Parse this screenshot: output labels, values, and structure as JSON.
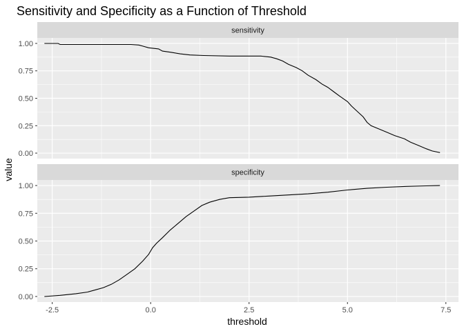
{
  "chart_data": {
    "type": "line",
    "title": "Sensitivity and Specificity as a Function of Threshold",
    "xlabel": "threshold",
    "ylabel": "value",
    "xlim": [
      -2.88,
      7.82
    ],
    "ylim": [
      -0.05,
      1.05
    ],
    "x_ticks": [
      -2.5,
      0,
      2.5,
      5,
      7.5
    ],
    "x_tick_labels": [
      "-2.5",
      "0.0",
      "2.5",
      "5.0",
      "7.5"
    ],
    "y_ticks": [
      0,
      0.25,
      0.5,
      0.75,
      1
    ],
    "y_tick_labels": [
      "0.00",
      "0.25",
      "0.50",
      "0.75",
      "1.00"
    ],
    "grid": true,
    "panel_background": "#ebebeb",
    "strip_background": "#d9d9d9",
    "line_color": "#000000",
    "facets": [
      {
        "label": "sensitivity",
        "points": [
          [
            -2.7,
            1.0
          ],
          [
            -2.35,
            1.0
          ],
          [
            -2.3,
            0.99
          ],
          [
            -1.5,
            0.99
          ],
          [
            -0.5,
            0.99
          ],
          [
            -0.3,
            0.985
          ],
          [
            -0.2,
            0.975
          ],
          [
            -0.05,
            0.96
          ],
          [
            0.2,
            0.95
          ],
          [
            0.3,
            0.93
          ],
          [
            0.5,
            0.92
          ],
          [
            0.75,
            0.905
          ],
          [
            1.0,
            0.895
          ],
          [
            1.35,
            0.89
          ],
          [
            2.0,
            0.885
          ],
          [
            2.8,
            0.885
          ],
          [
            3.05,
            0.875
          ],
          [
            3.2,
            0.86
          ],
          [
            3.35,
            0.84
          ],
          [
            3.5,
            0.81
          ],
          [
            3.7,
            0.78
          ],
          [
            3.85,
            0.75
          ],
          [
            4.0,
            0.71
          ],
          [
            4.2,
            0.67
          ],
          [
            4.35,
            0.63
          ],
          [
            4.5,
            0.6
          ],
          [
            4.65,
            0.56
          ],
          [
            4.8,
            0.52
          ],
          [
            5.0,
            0.47
          ],
          [
            5.1,
            0.43
          ],
          [
            5.25,
            0.38
          ],
          [
            5.4,
            0.33
          ],
          [
            5.5,
            0.28
          ],
          [
            5.6,
            0.25
          ],
          [
            5.8,
            0.22
          ],
          [
            6.0,
            0.19
          ],
          [
            6.2,
            0.16
          ],
          [
            6.45,
            0.13
          ],
          [
            6.6,
            0.1
          ],
          [
            6.8,
            0.07
          ],
          [
            7.0,
            0.04
          ],
          [
            7.15,
            0.02
          ],
          [
            7.35,
            0.005
          ]
        ]
      },
      {
        "label": "specificity",
        "points": [
          [
            -2.7,
            0.0
          ],
          [
            -2.3,
            0.01
          ],
          [
            -1.9,
            0.025
          ],
          [
            -1.6,
            0.04
          ],
          [
            -1.4,
            0.06
          ],
          [
            -1.2,
            0.08
          ],
          [
            -1.0,
            0.11
          ],
          [
            -0.8,
            0.15
          ],
          [
            -0.6,
            0.2
          ],
          [
            -0.4,
            0.25
          ],
          [
            -0.2,
            0.32
          ],
          [
            -0.05,
            0.38
          ],
          [
            0.05,
            0.44
          ],
          [
            0.15,
            0.48
          ],
          [
            0.3,
            0.53
          ],
          [
            0.5,
            0.6
          ],
          [
            0.7,
            0.66
          ],
          [
            0.9,
            0.72
          ],
          [
            1.1,
            0.77
          ],
          [
            1.3,
            0.82
          ],
          [
            1.5,
            0.85
          ],
          [
            1.75,
            0.875
          ],
          [
            2.0,
            0.89
          ],
          [
            2.5,
            0.895
          ],
          [
            3.0,
            0.905
          ],
          [
            3.5,
            0.915
          ],
          [
            4.0,
            0.925
          ],
          [
            4.5,
            0.94
          ],
          [
            5.0,
            0.96
          ],
          [
            5.5,
            0.975
          ],
          [
            6.0,
            0.985
          ],
          [
            6.5,
            0.992
          ],
          [
            7.0,
            0.997
          ],
          [
            7.35,
            1.0
          ]
        ]
      }
    ]
  }
}
